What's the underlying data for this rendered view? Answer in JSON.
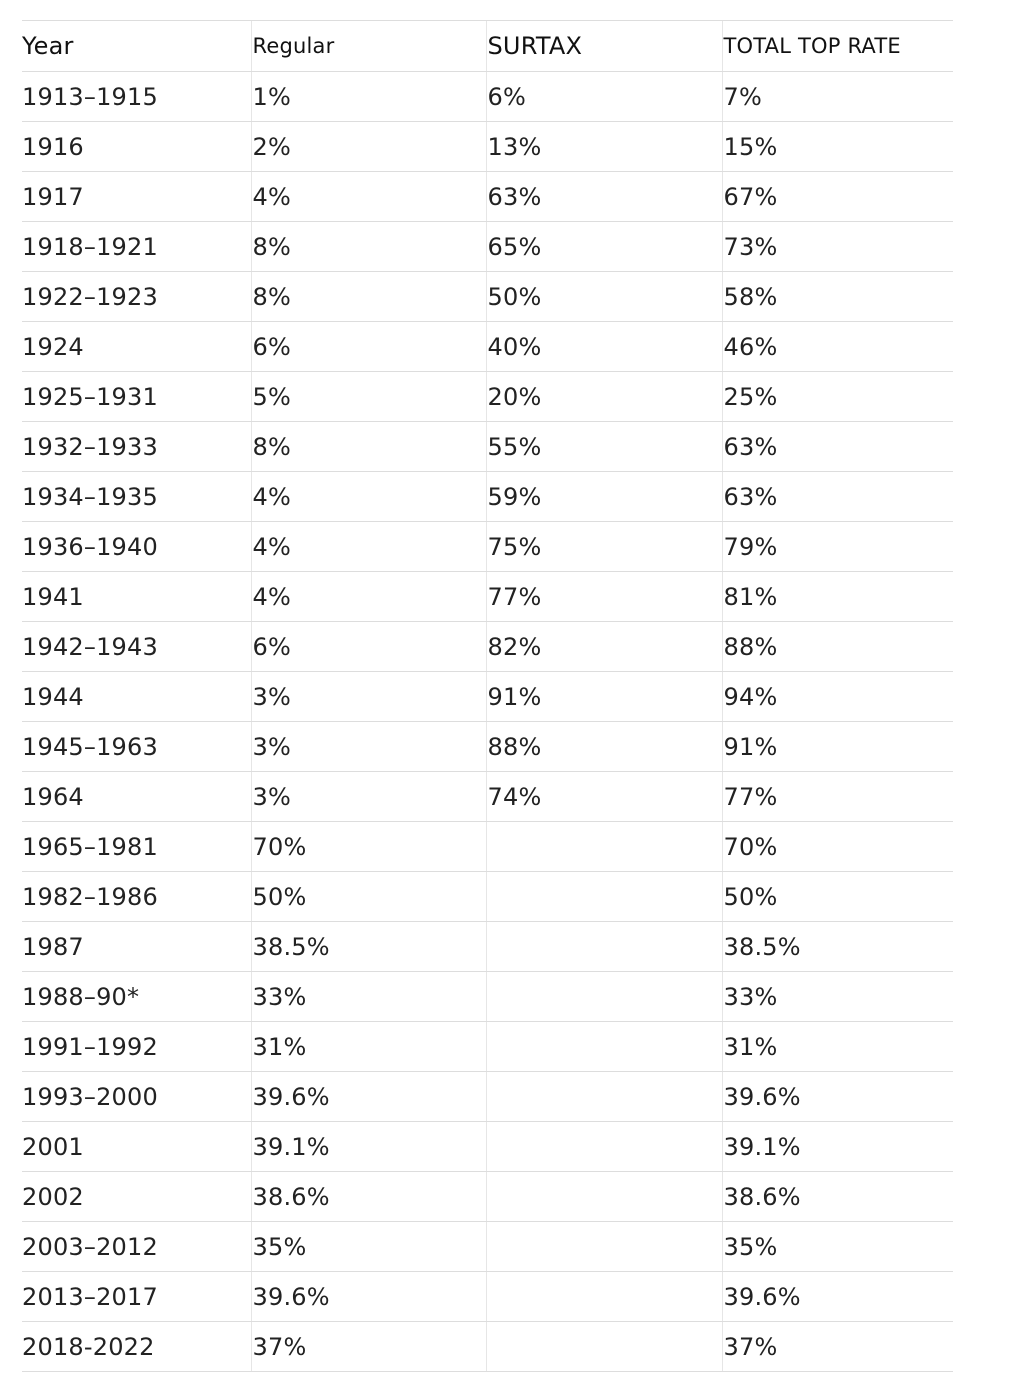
{
  "table": {
    "headers": [
      "Year",
      "Regular",
      "SURTAX",
      "TOTAL TOP RATE"
    ],
    "rows": [
      [
        "1913–1915",
        "1%",
        "6%",
        "7%"
      ],
      [
        "1916",
        "2%",
        "13%",
        "15%"
      ],
      [
        "1917",
        "4%",
        "63%",
        "67%"
      ],
      [
        "1918–1921",
        "8%",
        "65%",
        "73%"
      ],
      [
        "1922–1923",
        "8%",
        "50%",
        "58%"
      ],
      [
        "1924",
        "6%",
        "40%",
        "46%"
      ],
      [
        "1925–1931",
        "5%",
        "20%",
        "25%"
      ],
      [
        "1932–1933",
        "8%",
        "55%",
        "63%"
      ],
      [
        "1934–1935",
        "4%",
        "59%",
        "63%"
      ],
      [
        "1936–1940",
        "4%",
        "75%",
        "79%"
      ],
      [
        "1941",
        "4%",
        "77%",
        "81%"
      ],
      [
        "1942–1943",
        "6%",
        "82%",
        "88%"
      ],
      [
        "1944",
        "3%",
        "91%",
        "94%"
      ],
      [
        "1945–1963",
        "3%",
        "88%",
        "91%"
      ],
      [
        "1964",
        "3%",
        "74%",
        "77%"
      ],
      [
        "1965–1981",
        "70%",
        "",
        "70%"
      ],
      [
        "1982–1986",
        "50%",
        "",
        "50%"
      ],
      [
        "1987",
        "38.5%",
        "",
        "38.5%"
      ],
      [
        "1988–90*",
        "33%",
        "",
        "33%"
      ],
      [
        "1991–1992",
        "31%",
        "",
        "31%"
      ],
      [
        "1993–2000",
        "39.6%",
        "",
        "39.6%"
      ],
      [
        "2001",
        "39.1%",
        "",
        "39.1%"
      ],
      [
        "2002",
        "38.6%",
        "",
        "38.6%"
      ],
      [
        "2003–2012",
        "35%",
        "",
        "35%"
      ],
      [
        "2013–2017",
        "39.6%",
        "",
        "39.6%"
      ],
      [
        "2018-2022",
        "37%",
        "",
        "37%"
      ]
    ]
  }
}
